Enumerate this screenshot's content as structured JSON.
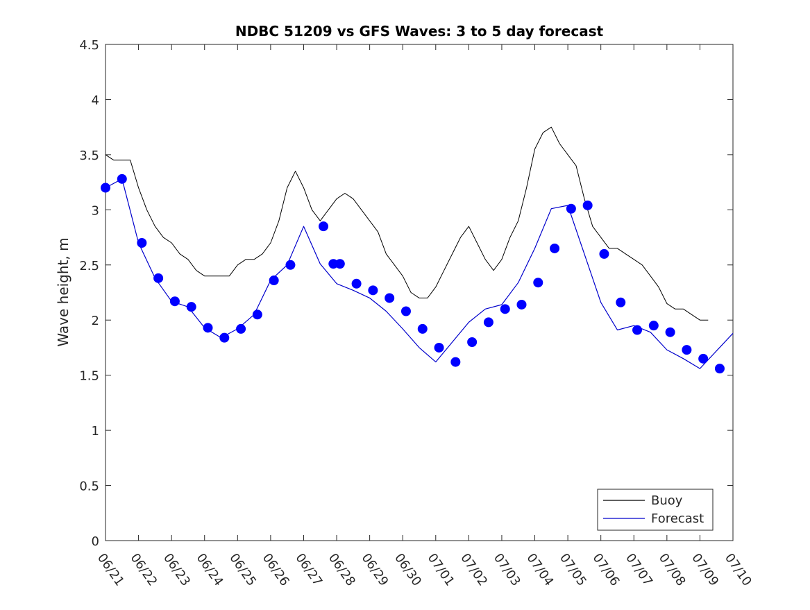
{
  "chart_data": {
    "type": "line",
    "title": "NDBC 51209 vs GFS Waves: 3 to 5 day forecast",
    "xlabel": "",
    "ylabel": "Wave height, m",
    "ylim": [
      0,
      4.5
    ],
    "xlim": [
      0,
      19
    ],
    "yticks": [
      0,
      0.5,
      1,
      1.5,
      2,
      2.5,
      3,
      3.5,
      4,
      4.5
    ],
    "ytick_labels": [
      "0",
      "0.5",
      "1",
      "1.5",
      "2",
      "2.5",
      "3",
      "3.5",
      "4",
      "4.5"
    ],
    "xticks": [
      0,
      1,
      2,
      3,
      4,
      5,
      6,
      7,
      8,
      9,
      10,
      11,
      12,
      13,
      14,
      15,
      16,
      17,
      18,
      19
    ],
    "xtick_labels": [
      "06/21",
      "06/22",
      "06/23",
      "06/24",
      "06/25",
      "06/26",
      "06/27",
      "06/28",
      "06/29",
      "06/30",
      "07/01",
      "07/02",
      "07/03",
      "07/04",
      "07/05",
      "07/06",
      "07/07",
      "07/08",
      "07/09",
      "07/10"
    ],
    "grid": false,
    "legend_position": "bottom-right",
    "legend": [
      {
        "label": "Buoy",
        "color": "#000000"
      },
      {
        "label": "Forecast",
        "color": "#0000cc"
      }
    ],
    "series": [
      {
        "name": "Buoy",
        "color": "#000000",
        "x": [
          0,
          0.25,
          0.5,
          0.75,
          1,
          1.25,
          1.5,
          1.75,
          2,
          2.25,
          2.5,
          2.75,
          3,
          3.25,
          3.5,
          3.75,
          4,
          4.25,
          4.5,
          4.75,
          5,
          5.25,
          5.5,
          5.75,
          6,
          6.25,
          6.5,
          6.75,
          7,
          7.25,
          7.5,
          7.75,
          8,
          8.25,
          8.5,
          8.75,
          9,
          9.25,
          9.5,
          9.75,
          10,
          10.25,
          10.5,
          10.75,
          11,
          11.25,
          11.5,
          11.75,
          12,
          12.25,
          12.5,
          12.75,
          13,
          13.25,
          13.5,
          13.75,
          14,
          14.25,
          14.5,
          14.75,
          15,
          15.25,
          15.5,
          15.75,
          16,
          16.25,
          16.5,
          16.75,
          17,
          17.25,
          17.5,
          17.75,
          18,
          18.25
        ],
        "y": [
          3.5,
          3.45,
          3.45,
          3.45,
          3.2,
          3.0,
          2.85,
          2.75,
          2.7,
          2.6,
          2.55,
          2.45,
          2.4,
          2.4,
          2.4,
          2.4,
          2.5,
          2.55,
          2.55,
          2.6,
          2.7,
          2.9,
          3.2,
          3.35,
          3.2,
          3.0,
          2.9,
          3.0,
          3.1,
          3.15,
          3.1,
          3.0,
          2.9,
          2.8,
          2.6,
          2.5,
          2.4,
          2.25,
          2.2,
          2.2,
          2.3,
          2.45,
          2.6,
          2.75,
          2.85,
          2.7,
          2.55,
          2.45,
          2.55,
          2.75,
          2.9,
          3.2,
          3.55,
          3.7,
          3.75,
          3.6,
          3.5,
          3.4,
          3.1,
          2.85,
          2.75,
          2.65,
          2.65,
          2.6,
          2.55,
          2.5,
          2.4,
          2.3,
          2.15,
          2.1,
          2.1,
          2.05,
          2.0,
          2.0
        ]
      },
      {
        "name": "Forecast",
        "color": "#0000cc",
        "x": [
          0,
          0.5,
          1,
          1.5,
          2,
          2.5,
          3,
          3.5,
          4,
          4.5,
          5,
          5.5,
          6,
          6.5,
          7,
          7.5,
          8,
          8.5,
          9,
          9.5,
          10,
          10.5,
          11,
          11.5,
          12,
          12.5,
          13,
          13.5,
          14,
          14.5,
          15,
          15.5,
          16,
          16.5,
          17,
          17.5,
          18,
          18.5,
          19
        ],
        "y": [
          3.2,
          3.28,
          2.7,
          2.38,
          2.17,
          2.12,
          1.93,
          1.84,
          1.92,
          2.05,
          2.36,
          2.5,
          2.85,
          2.51,
          2.33,
          2.27,
          2.2,
          2.08,
          1.92,
          1.75,
          1.62,
          1.8,
          1.98,
          2.1,
          2.14,
          2.34,
          2.65,
          3.01,
          3.04,
          2.6,
          2.16,
          1.91,
          1.95,
          1.89,
          1.73,
          1.65,
          1.56,
          1.72,
          1.88
        ]
      }
    ],
    "forecast_markers": {
      "color": "#0000ff",
      "x": [
        0,
        0.5,
        1.1,
        1.6,
        2.1,
        2.6,
        3.1,
        3.6,
        4.1,
        4.6,
        5.1,
        5.6,
        6.6,
        6.9,
        7.1,
        7.6,
        8.1,
        8.6,
        9.1,
        9.6,
        10.1,
        10.6,
        11.1,
        11.6,
        12.1,
        12.6,
        13.1,
        13.6,
        14.1,
        14.6,
        15.1,
        15.6,
        16.1,
        16.6,
        17.1,
        17.6,
        18.1,
        18.6
      ],
      "y": [
        3.2,
        3.28,
        2.7,
        2.38,
        2.17,
        2.12,
        1.93,
        1.84,
        1.92,
        2.05,
        2.36,
        2.5,
        2.85,
        2.51,
        2.51,
        2.33,
        2.27,
        2.2,
        2.08,
        1.92,
        1.75,
        1.62,
        1.8,
        1.98,
        2.1,
        2.14,
        2.34,
        2.65,
        3.01,
        3.04,
        2.6,
        2.16,
        1.91,
        1.95,
        1.89,
        1.73,
        1.65,
        1.56
      ]
    }
  }
}
